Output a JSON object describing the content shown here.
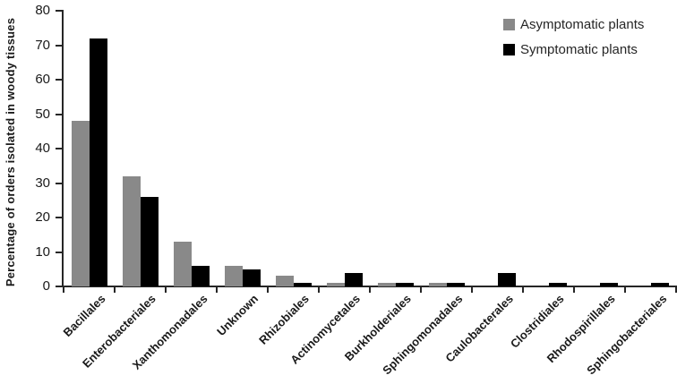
{
  "chart_data": {
    "type": "bar",
    "title": "",
    "xlabel": "",
    "ylabel": "Percentage of orders isolated in woody tissues",
    "ylim": [
      0,
      80
    ],
    "ytick_step": 10,
    "grid": false,
    "legend_position": "top-right",
    "categories": [
      "Bacillales",
      "Enterobacteriales",
      "Xanthomonadales",
      "Unknown",
      "Rhizobiales",
      "Actinomycetales",
      "Burkholderiales",
      "Sphingomonadales",
      "Caulobacterales",
      "Clostridiales",
      "Rhodospirillales",
      "Sphingobacteriales"
    ],
    "series": [
      {
        "name": "Asymptomatic plants",
        "color": "#898989",
        "values": [
          48,
          32,
          13,
          6,
          3,
          1,
          1,
          1,
          0,
          0,
          0,
          0
        ]
      },
      {
        "name": "Symptomatic plants",
        "color": "#000000",
        "values": [
          72,
          26,
          6,
          5,
          1,
          4,
          1,
          1,
          4,
          1,
          1,
          1
        ]
      }
    ]
  },
  "colors": {
    "axis": "#262626",
    "text": "#1a1a1a",
    "background": "#ffffff"
  }
}
